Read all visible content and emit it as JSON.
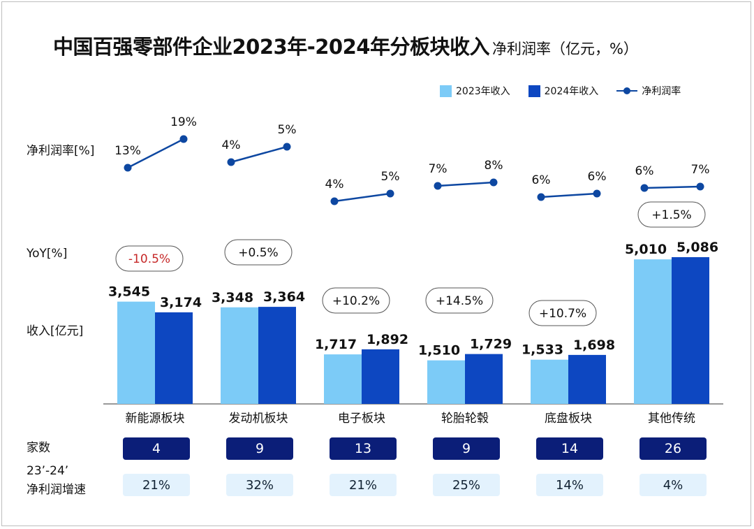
{
  "title": {
    "main": "中国百强零部件企业2023年-2024年分板块收入",
    "sub": "净利润率（亿元，%）"
  },
  "legend": [
    {
      "label": "2023年收入",
      "color": "#7ccbf7"
    },
    {
      "label": "2024年收入",
      "color": "#0d47c1"
    },
    {
      "label": "净利润率",
      "color": "#0d47a1"
    }
  ],
  "row_labels": {
    "margin": "净利润率[%]",
    "yoy": "YoY[%]",
    "revenue": "收入[亿元]",
    "count": "家数",
    "growth_line1": "23’-24’",
    "growth_line2": "净利润增速"
  },
  "chart_data": {
    "type": "bar",
    "title": "中国百强零部件企业2023年-2024年分板块收入 净利润率（亿元，%）",
    "categories": [
      "新能源板块",
      "发动机板块",
      "电子板块",
      "轮胎轮毂",
      "底盘板块",
      "其他传统"
    ],
    "series": [
      {
        "name": "2023年收入",
        "values": [
          3545,
          3348,
          1717,
          1510,
          1533,
          5010
        ]
      },
      {
        "name": "2024年收入",
        "values": [
          3174,
          3364,
          1892,
          1729,
          1698,
          5086
        ]
      }
    ],
    "value_labels": [
      [
        "3,545",
        "3,174"
      ],
      [
        "3,348",
        "3,364"
      ],
      [
        "1,717",
        "1,892"
      ],
      [
        "1,510",
        "1,729"
      ],
      [
        "1,533",
        "1,698"
      ],
      [
        "5,010",
        "5,086"
      ]
    ],
    "yoy": [
      "-10.5%",
      "+0.5%",
      "+10.2%",
      "+14.5%",
      "+10.7%",
      "+1.5%"
    ],
    "yoy_negative": [
      true,
      false,
      false,
      false,
      false,
      false
    ],
    "net_margin": {
      "name": "净利润率",
      "type": "line",
      "values_2023": [
        13,
        4,
        4,
        7,
        6,
        6
      ],
      "values_2024": [
        19,
        5,
        5,
        8,
        6,
        7
      ],
      "labels_2023": [
        "13%",
        "4%",
        "4%",
        "7%",
        "6%",
        "6%"
      ],
      "labels_2024": [
        "19%",
        "5%",
        "5%",
        "8%",
        "6%",
        "7%"
      ]
    },
    "company_count": [
      4,
      9,
      13,
      9,
      14,
      26
    ],
    "profit_growth": [
      "21%",
      "32%",
      "21%",
      "25%",
      "14%",
      "4%"
    ],
    "ylabel": "收入[亿元]",
    "ylim": [
      0,
      5500
    ],
    "grid": false,
    "legend_position": "top-right"
  },
  "colors": {
    "bar2023": "#7ccbf7",
    "bar2024": "#0d47c1",
    "line": "#0d47a1",
    "negative": "#c62828",
    "count_box": "#0b1e78",
    "growth_box": "#e3f2fd"
  }
}
